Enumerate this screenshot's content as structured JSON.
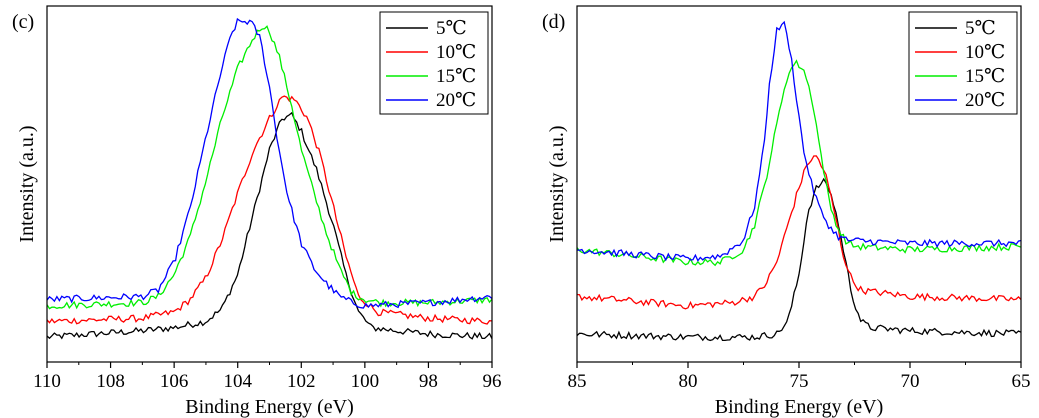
{
  "chart_data": [
    {
      "panel_label": "(c)",
      "type": "line",
      "xlabel": "Binding Energy (eV)",
      "ylabel": "Intensity (a.u.)",
      "xlim": [
        110,
        96
      ],
      "x_reversed": true,
      "y_ticks_shown": false,
      "xticks": [
        110,
        108,
        106,
        104,
        102,
        100,
        98,
        96
      ],
      "xtick_labels": [
        "110",
        "108",
        "106",
        "104",
        "102",
        "100",
        "98",
        "96"
      ],
      "legend_position": "top-right",
      "series": [
        {
          "name": "5℃",
          "color": "#000000",
          "x": [
            110,
            107,
            106,
            105,
            104.5,
            104,
            103.5,
            103,
            102.6,
            102.3,
            102,
            101.5,
            101,
            100.6,
            100.2,
            99.8,
            99,
            98,
            96
          ],
          "y": [
            0.02,
            0.04,
            0.05,
            0.07,
            0.11,
            0.22,
            0.42,
            0.62,
            0.72,
            0.73,
            0.68,
            0.55,
            0.38,
            0.22,
            0.1,
            0.05,
            0.04,
            0.03,
            0.02
          ]
        },
        {
          "name": "10℃",
          "color": "#ff0000",
          "x": [
            110,
            107,
            106,
            105.5,
            105,
            104.5,
            104,
            103.5,
            103,
            102.6,
            102.2,
            101.8,
            101.4,
            101,
            100.6,
            100.2,
            99.6,
            98,
            96
          ],
          "y": [
            0.07,
            0.08,
            0.1,
            0.14,
            0.21,
            0.33,
            0.48,
            0.62,
            0.72,
            0.79,
            0.78,
            0.72,
            0.6,
            0.44,
            0.28,
            0.15,
            0.1,
            0.08,
            0.07
          ]
        },
        {
          "name": "15℃",
          "color": "#00ee00",
          "x": [
            110,
            107,
            106.5,
            106,
            105.5,
            105,
            104.5,
            104,
            103.5,
            103.2,
            103,
            102.7,
            102.3,
            102,
            101.6,
            101.2,
            100.8,
            100.4,
            100,
            99.5,
            98,
            96
          ],
          "y": [
            0.12,
            0.13,
            0.15,
            0.22,
            0.34,
            0.52,
            0.72,
            0.88,
            0.98,
            1.02,
            1.0,
            0.92,
            0.76,
            0.62,
            0.48,
            0.35,
            0.24,
            0.16,
            0.14,
            0.13,
            0.13,
            0.14
          ]
        },
        {
          "name": "20℃",
          "color": "#0000ff",
          "x": [
            110,
            107,
            106.5,
            106,
            105.5,
            105,
            104.5,
            104.2,
            104,
            103.6,
            103.3,
            103,
            102.7,
            102.4,
            102,
            101.6,
            101.2,
            100.8,
            100.4,
            100,
            98,
            96
          ],
          "y": [
            0.14,
            0.15,
            0.17,
            0.26,
            0.43,
            0.66,
            0.88,
            0.99,
            1.03,
            1.03,
            0.98,
            0.82,
            0.62,
            0.46,
            0.32,
            0.24,
            0.19,
            0.15,
            0.13,
            0.12,
            0.13,
            0.15
          ]
        }
      ]
    },
    {
      "panel_label": "(d)",
      "type": "line",
      "xlabel": "Binding Energy (eV)",
      "ylabel": "Intensity (a.u.)",
      "xlim": [
        85,
        65
      ],
      "x_reversed": true,
      "y_ticks_shown": false,
      "xticks": [
        85,
        80,
        75,
        70,
        65
      ],
      "xtick_labels": [
        "85",
        "80",
        "75",
        "70",
        "65"
      ],
      "legend_position": "top-right",
      "series": [
        {
          "name": "5℃",
          "color": "#000000",
          "x": [
            85,
            80,
            77,
            76,
            75.5,
            75,
            74.6,
            74.2,
            73.8,
            73.4,
            73,
            72.6,
            72.2,
            71.8,
            70,
            65
          ],
          "y": [
            0.03,
            0.02,
            0.02,
            0.03,
            0.07,
            0.22,
            0.42,
            0.5,
            0.52,
            0.44,
            0.3,
            0.15,
            0.07,
            0.05,
            0.04,
            0.03
          ]
        },
        {
          "name": "10℃",
          "color": "#ff0000",
          "x": [
            85,
            80,
            78,
            77,
            76.5,
            76,
            75.5,
            75,
            74.6,
            74.2,
            73.8,
            73.4,
            73,
            72.6,
            72.2,
            70,
            65
          ],
          "y": [
            0.15,
            0.12,
            0.13,
            0.15,
            0.19,
            0.26,
            0.38,
            0.5,
            0.58,
            0.6,
            0.54,
            0.42,
            0.28,
            0.2,
            0.17,
            0.15,
            0.14
          ]
        },
        {
          "name": "15℃",
          "color": "#00ee00",
          "x": [
            85,
            80,
            78.5,
            77.5,
            77,
            76.5,
            76,
            75.6,
            75.2,
            74.8,
            74.4,
            74,
            73.6,
            73.2,
            72.8,
            72.4,
            70,
            65
          ],
          "y": [
            0.3,
            0.26,
            0.26,
            0.3,
            0.38,
            0.52,
            0.7,
            0.84,
            0.9,
            0.88,
            0.78,
            0.6,
            0.44,
            0.36,
            0.32,
            0.31,
            0.3,
            0.31
          ]
        },
        {
          "name": "20℃",
          "color": "#0000ff",
          "x": [
            85,
            80,
            78.5,
            77.5,
            77,
            76.6,
            76.3,
            76,
            75.7,
            75.4,
            75.1,
            74.8,
            74.4,
            74,
            73.6,
            73.2,
            72.8,
            70,
            65
          ],
          "y": [
            0.3,
            0.27,
            0.28,
            0.33,
            0.44,
            0.62,
            0.85,
            1.0,
            1.03,
            0.94,
            0.78,
            0.62,
            0.5,
            0.42,
            0.37,
            0.34,
            0.33,
            0.32,
            0.32
          ]
        }
      ]
    }
  ]
}
